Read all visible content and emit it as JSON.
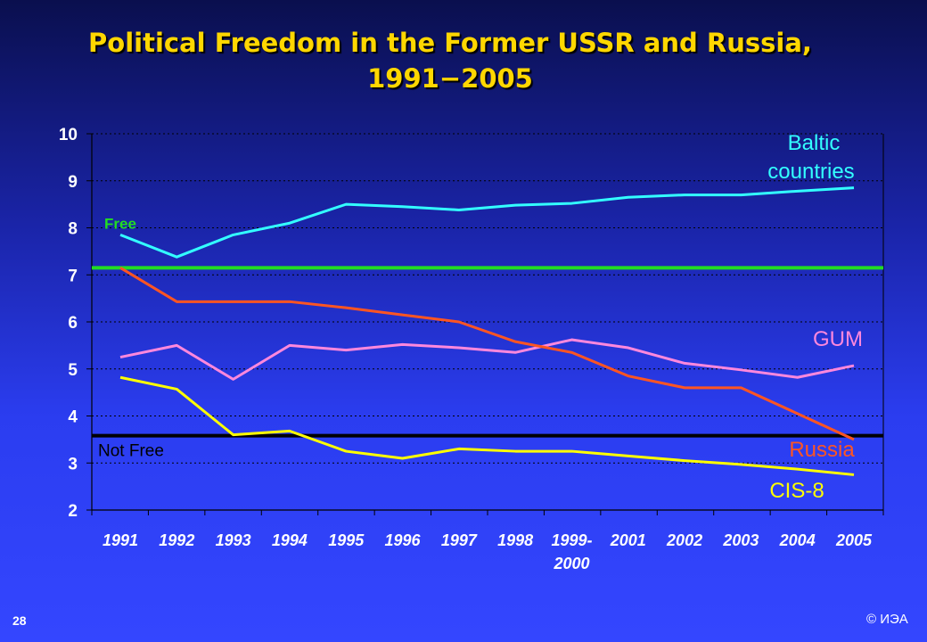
{
  "title_line1": "Political Freedom in the Former USSR and Russia,",
  "title_line2": "1991−2005",
  "page_number": "28",
  "copyright": "© ИЭА",
  "colors": {
    "baltic": "#33ffff",
    "gum": "#ff88dd",
    "russia": "#ff5522",
    "cis8": "#ffff00",
    "free_line": "#22dd22",
    "not_free_line": "#000000"
  },
  "chart_data": {
    "type": "line",
    "categories": [
      "1991",
      "1992",
      "1993",
      "1994",
      "1995",
      "1996",
      "1997",
      "1998",
      "1999-2000",
      "2001",
      "2002",
      "2003",
      "2004",
      "2005"
    ],
    "category_labels": [
      "1991",
      "1992",
      "1993",
      "1994",
      "1995",
      "1996",
      "1997",
      "1998",
      "1999-",
      "2001",
      "2002",
      "2003",
      "2004",
      "2005"
    ],
    "category_sublabel": "2000",
    "y_ticks": [
      "2",
      "3",
      "4",
      "5",
      "6",
      "7",
      "8",
      "9",
      "10"
    ],
    "ylim": [
      2,
      10
    ],
    "grid": "horizontal dotted",
    "series": [
      {
        "name": "Baltic countries",
        "label_lines": [
          "Baltic",
          "countries"
        ],
        "color_key": "baltic",
        "values": [
          7.85,
          7.38,
          7.85,
          8.1,
          8.5,
          8.45,
          8.38,
          8.48,
          8.52,
          8.65,
          8.7,
          8.7,
          8.78,
          8.85
        ]
      },
      {
        "name": "GUM",
        "label_lines": [
          "GUM"
        ],
        "color_key": "gum",
        "values": [
          5.25,
          5.5,
          4.78,
          5.5,
          5.4,
          5.52,
          5.45,
          5.35,
          5.62,
          5.45,
          5.12,
          4.98,
          4.82,
          5.07
        ]
      },
      {
        "name": "Russia",
        "label_lines": [
          "Russia"
        ],
        "color_key": "russia",
        "values": [
          7.15,
          6.43,
          6.43,
          6.43,
          6.3,
          6.15,
          6.0,
          5.58,
          5.35,
          4.85,
          4.6,
          4.6,
          4.05,
          3.5
        ]
      },
      {
        "name": "CIS-8",
        "label_lines": [
          "CIS-8"
        ],
        "color_key": "cis8",
        "values": [
          4.82,
          4.57,
          3.6,
          3.68,
          3.25,
          3.1,
          3.3,
          3.25,
          3.25,
          3.15,
          3.05,
          2.97,
          2.87,
          2.75
        ]
      }
    ],
    "thresholds": [
      {
        "label": "Free",
        "value": 7.15,
        "color_key": "free_line"
      },
      {
        "label": "Not Free",
        "value": 3.58,
        "color_key": "not_free_line"
      }
    ]
  }
}
